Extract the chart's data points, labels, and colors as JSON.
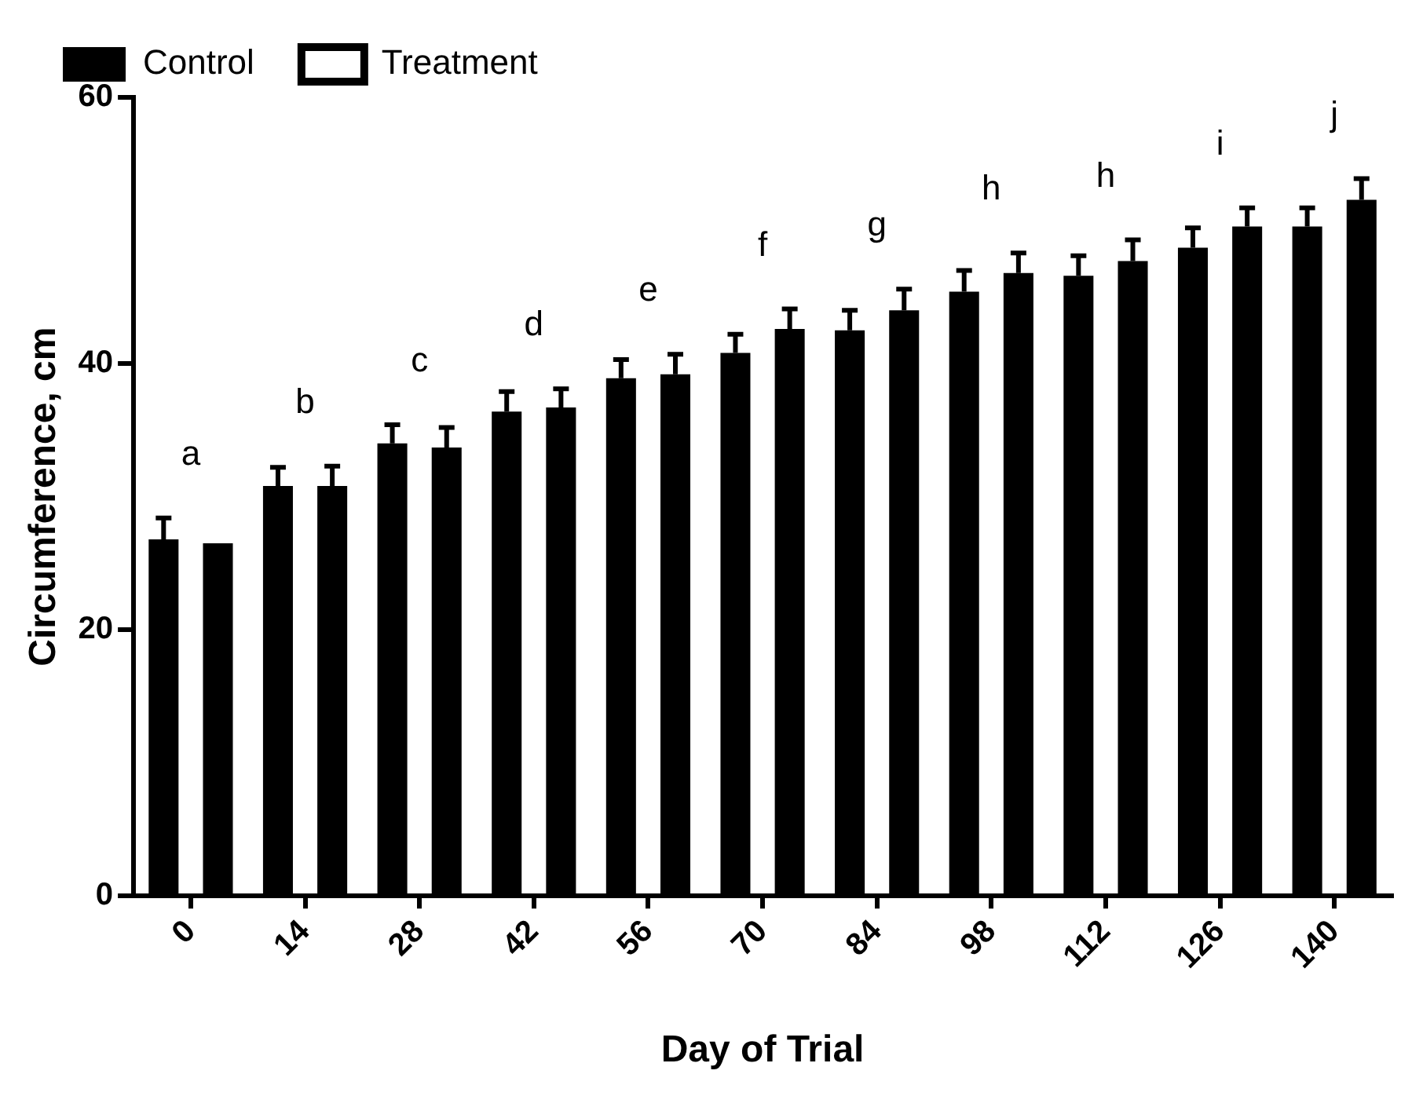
{
  "chart_data": {
    "type": "bar",
    "xlabel": "Day of Trial",
    "ylabel": "Circumference, cm",
    "categories": [
      "0",
      "14",
      "28",
      "42",
      "56",
      "70",
      "84",
      "98",
      "112",
      "126",
      "140"
    ],
    "series": [
      {
        "name": "Control",
        "color": "#000000",
        "values": [
          26.8,
          30.8,
          34.0,
          36.4,
          38.9,
          40.8,
          42.5,
          45.4,
          46.6,
          48.7,
          50.3
        ],
        "errors": [
          [
            26.8,
            28.4
          ],
          [
            30.8,
            32.2
          ],
          [
            34.0,
            35.4
          ],
          [
            36.4,
            37.9
          ],
          [
            38.9,
            40.3
          ],
          [
            40.8,
            42.2
          ],
          [
            42.5,
            44.0
          ],
          [
            45.4,
            47.0
          ],
          [
            46.6,
            48.1
          ],
          [
            48.7,
            50.2
          ],
          [
            50.3,
            51.7
          ]
        ]
      },
      {
        "name": "Treatment",
        "color": "#000000",
        "values": [
          26.5,
          30.8,
          33.7,
          36.7,
          39.2,
          42.6,
          44.0,
          46.8,
          47.7,
          50.3,
          52.3
        ],
        "errors": [
          null,
          [
            30.8,
            32.3
          ],
          [
            33.7,
            35.2
          ],
          [
            36.7,
            38.1
          ],
          [
            39.2,
            40.7
          ],
          [
            42.6,
            44.1
          ],
          [
            44.0,
            45.6
          ],
          [
            46.8,
            48.3
          ],
          [
            47.7,
            49.3
          ],
          [
            50.3,
            51.7
          ],
          [
            52.3,
            53.9
          ]
        ]
      }
    ],
    "ylim": [
      0,
      60
    ],
    "yticks": [
      0,
      20,
      40,
      60
    ],
    "grid": false,
    "legend": "top left",
    "annotations": [
      "a",
      "b",
      "c",
      "d",
      "e",
      "f",
      "g",
      "h",
      "h",
      "i",
      "j"
    ]
  }
}
